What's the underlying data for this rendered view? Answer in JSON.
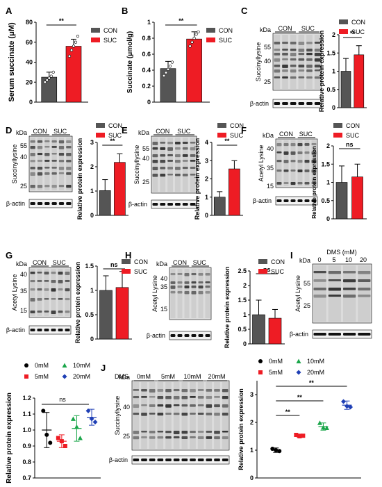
{
  "colors": {
    "con": "#555555",
    "suc": "#ee1c24",
    "m0": "#000000",
    "m5": "#ee1c24",
    "m10": "#1aa64a",
    "m20": "#1f3fb5"
  },
  "labels": {
    "panels": [
      "A",
      "B",
      "C",
      "D",
      "E",
      "F",
      "G",
      "H",
      "I",
      "J"
    ],
    "con": "CON",
    "suc": "SUC",
    "kda": "kDa",
    "actin": "β-actin",
    "succ": "Succinyllysine",
    "acetyl": "Acetyl Lysine",
    "dms": "DMS",
    "dms_mm": "DMS (mM)",
    "m0": "0mM",
    "m5": "5mM",
    "m10": "10mM",
    "m20": "20mM",
    "d0": "0",
    "d5": "5",
    "d10": "10",
    "d20": "20",
    "sig2": "**",
    "ns": "ns",
    "rel": "Relative protein expression",
    "serum": "Serum succinate (μM)",
    "succinate": "Succinate (μmol/g)"
  },
  "blot_markers": {
    "C": [
      "55",
      "40",
      "25"
    ],
    "D": [
      "55",
      "40",
      "25"
    ],
    "E": [
      "55",
      "40",
      "25"
    ],
    "F": [
      "40",
      "35",
      "15"
    ],
    "G": [
      "40",
      "35",
      "15"
    ],
    "H": [
      "40",
      "35",
      "15"
    ],
    "I": [
      "55",
      "25"
    ],
    "J": [
      "40",
      "25"
    ]
  },
  "chart_data": [
    {
      "panel": "A",
      "type": "bar",
      "categories": [
        "CON",
        "SUC"
      ],
      "values": [
        25,
        56
      ],
      "errors": [
        5,
        7
      ],
      "points": [
        [
          20,
          22,
          24,
          26,
          30
        ],
        [
          46,
          52,
          56,
          60,
          66
        ]
      ],
      "ylabel": "Serum succinate (μM)",
      "ylim": [
        0,
        80
      ],
      "yticks": [
        0,
        20,
        40,
        60,
        80
      ],
      "significance": "**"
    },
    {
      "panel": "B",
      "type": "bar",
      "categories": [
        "CON",
        "SUC"
      ],
      "values": [
        0.42,
        0.79
      ],
      "errors": [
        0.09,
        0.09
      ],
      "points": [
        [
          0.33,
          0.37,
          0.41,
          0.45,
          0.5
        ],
        [
          0.7,
          0.75,
          0.8,
          0.85,
          0.88
        ]
      ],
      "ylabel": "Succinate (μmol/g)",
      "ylim": [
        0,
        1.0
      ],
      "yticks": [
        0.0,
        0.2,
        0.4,
        0.6,
        0.8,
        1.0
      ],
      "significance": "**"
    },
    {
      "panel": "C",
      "type": "bar",
      "categories": [
        "CON",
        "SUC"
      ],
      "values": [
        1.0,
        1.45
      ],
      "errors": [
        0.35,
        0.25
      ],
      "ylabel": "Relative protein expression",
      "ylim": [
        0,
        2.0
      ],
      "yticks": [
        0.0,
        0.5,
        1.0,
        1.5,
        2.0
      ],
      "significance": "**"
    },
    {
      "panel": "D",
      "type": "bar",
      "categories": [
        "CON",
        "SUC"
      ],
      "values": [
        1.02,
        2.18
      ],
      "errors": [
        0.45,
        0.35
      ],
      "ylabel": "Relative protein expression",
      "ylim": [
        0,
        3
      ],
      "yticks": [
        0,
        1,
        2,
        3
      ],
      "significance": "**"
    },
    {
      "panel": "E",
      "type": "bar",
      "categories": [
        "CON",
        "SUC"
      ],
      "values": [
        1.0,
        2.55
      ],
      "errors": [
        0.3,
        0.45
      ],
      "ylabel": "Relative protein expression",
      "ylim": [
        0,
        4
      ],
      "yticks": [
        0,
        1,
        2,
        3,
        4
      ],
      "significance": "**"
    },
    {
      "panel": "F",
      "type": "bar",
      "categories": [
        "CON",
        "SUC"
      ],
      "values": [
        1.0,
        1.15
      ],
      "errors": [
        0.45,
        0.35
      ],
      "ylabel": "Relative protein expression",
      "ylim": [
        0,
        2.0
      ],
      "yticks": [
        0.0,
        0.5,
        1.0,
        1.5,
        2.0
      ],
      "significance": "ns"
    },
    {
      "panel": "G",
      "type": "bar",
      "categories": [
        "CON",
        "SUC"
      ],
      "values": [
        1.0,
        1.06
      ],
      "errors": [
        0.3,
        0.33
      ],
      "ylabel": "Relative protein expression",
      "ylim": [
        0,
        1.5
      ],
      "yticks": [
        0.0,
        0.5,
        1.0,
        1.5
      ],
      "significance": "ns"
    },
    {
      "panel": "H",
      "type": "bar",
      "categories": [
        "CON",
        "SUC"
      ],
      "values": [
        1.0,
        0.88
      ],
      "errors": [
        0.5,
        0.3
      ],
      "ylabel": "Relative protein expression",
      "ylim": [
        0,
        2.5
      ],
      "yticks": [
        0.0,
        0.5,
        1.0,
        1.5,
        2.0,
        2.5
      ],
      "significance": "ns"
    },
    {
      "panel": "I-quant",
      "type": "scatter",
      "categories": [
        "0mM",
        "5mM",
        "10mM",
        "20mM"
      ],
      "means": [
        1.0,
        0.93,
        1.01,
        1.08
      ],
      "errors": [
        0.11,
        0.04,
        0.08,
        0.05
      ],
      "points": [
        [
          1.12,
          0.97,
          0.92
        ],
        [
          0.95,
          0.93,
          0.9
        ],
        [
          1.07,
          1.02,
          0.95
        ],
        [
          1.12,
          1.07,
          1.05
        ]
      ],
      "ylabel": "Relative protein expression",
      "ylim": [
        0.7,
        1.2
      ],
      "yticks": [
        0.7,
        0.8,
        0.9,
        1.0,
        1.1,
        1.2
      ],
      "significance": "ns"
    },
    {
      "panel": "J",
      "type": "scatter",
      "categories": [
        "0mM",
        "5mM",
        "10mM",
        "20mM"
      ],
      "means": [
        1.0,
        1.52,
        1.85,
        2.62
      ],
      "errors": [
        0.08,
        0.06,
        0.13,
        0.15
      ],
      "points": [
        [
          1.05,
          1.0,
          0.97
        ],
        [
          1.55,
          1.5,
          1.52
        ],
        [
          1.98,
          1.82,
          1.8
        ],
        [
          2.75,
          2.58,
          2.55
        ]
      ],
      "ylabel": "Relative protein expression",
      "ylim": [
        0,
        3.5
      ],
      "yticks": [
        0,
        1,
        2,
        3
      ],
      "significance": [
        "**",
        "**",
        "**"
      ]
    }
  ]
}
